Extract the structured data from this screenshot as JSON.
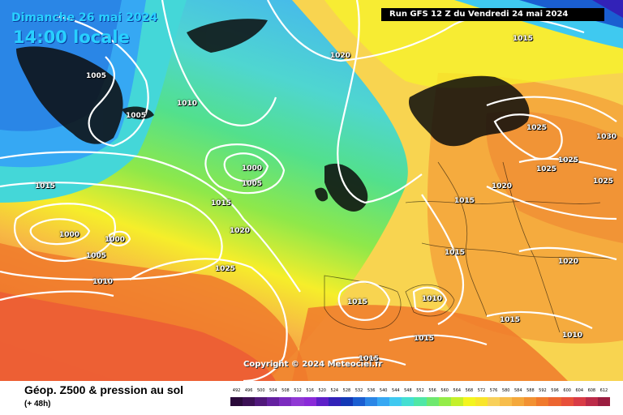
{
  "map": {
    "date_label": "Dimanche 26 mai 2024",
    "time_label": "14:00 locale",
    "run_label": "Run GFS 12 Z du Vendredi 24 mai 2024",
    "copyright": "Copyright © 2024 Meteociel.fr",
    "isobar_labels": [
      "1005",
      "1005",
      "1005",
      "1005",
      "1010",
      "1015",
      "1015",
      "1015",
      "1020",
      "1025",
      "1030",
      "1025",
      "1025",
      "1025",
      "1020",
      "1015",
      "1015",
      "1020",
      "1015",
      "1015",
      "1010",
      "1010",
      "1020",
      "1015",
      "1000",
      "1005",
      "1015",
      "1000",
      "1005",
      "1000",
      "1010",
      "1025",
      "1020",
      "1015"
    ]
  },
  "legend": {
    "product_label": "Géop. Z500 & pression au sol",
    "lead_label": "(+ 48h)",
    "ticks": [
      "492",
      "496",
      "500",
      "504",
      "508",
      "512",
      "516",
      "520",
      "524",
      "528",
      "532",
      "536",
      "540",
      "544",
      "548",
      "552",
      "556",
      "560",
      "564",
      "568",
      "572",
      "576",
      "580",
      "584",
      "588",
      "592",
      "596",
      "600",
      "604",
      "608",
      "612"
    ],
    "colors": [
      "#2a0a3a",
      "#3c1055",
      "#50187a",
      "#6420a0",
      "#7c2bbf",
      "#9038d4",
      "#8a2ad8",
      "#5e1fc8",
      "#3222b8",
      "#1338b6",
      "#1a5ed1",
      "#2a86e6",
      "#36a8f3",
      "#3fc9f0",
      "#44dfd2",
      "#4fe7a6",
      "#6ee86f",
      "#94ec48",
      "#c4f02a",
      "#f3f51e",
      "#f9e52a",
      "#f8d05a",
      "#f7bd4b",
      "#f4a83b",
      "#f29132",
      "#f07a2c",
      "#ec6530",
      "#e8503a",
      "#d93c46",
      "#bc2b48",
      "#9a1d40"
    ]
  }
}
